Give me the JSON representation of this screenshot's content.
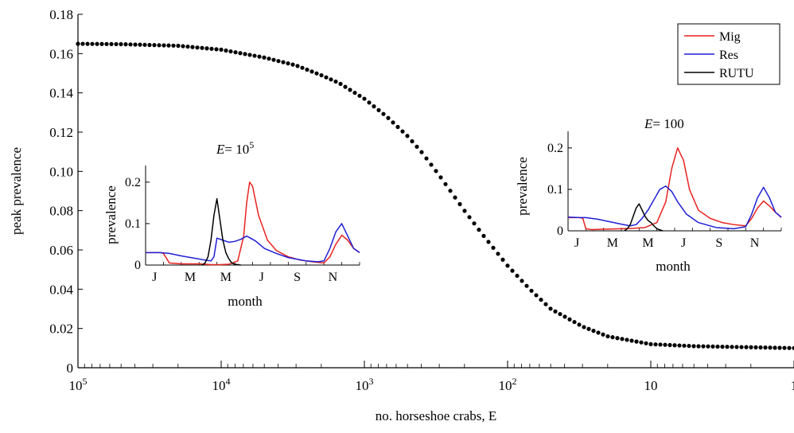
{
  "chart_data": {
    "type": "scatter",
    "xlabel": "no. horseshoe crabs, E",
    "ylabel": "peak prevalence",
    "x_scale": "log-reversed",
    "xlim": [
      100000,
      1
    ],
    "ylim": [
      0,
      0.18
    ],
    "x_ticks": [
      "10^5",
      "10^4",
      "10^3",
      "10^2",
      "10",
      "1"
    ],
    "y_ticks": [
      "0",
      "0.02",
      "0.04",
      "0.06",
      "0.08",
      "0.10",
      "0.12",
      "0.14",
      "0.16",
      "0.18"
    ],
    "main_series": {
      "E": [
        100000,
        50000,
        20000,
        10000,
        5000,
        3000,
        2000,
        1500,
        1000,
        700,
        500,
        400,
        300,
        200,
        150,
        100,
        70,
        50,
        30,
        20,
        10,
        5,
        1
      ],
      "peak_prevalence": [
        0.165,
        0.1648,
        0.164,
        0.162,
        0.158,
        0.154,
        0.149,
        0.145,
        0.137,
        0.128,
        0.118,
        0.11,
        0.098,
        0.08,
        0.068,
        0.052,
        0.04,
        0.03,
        0.021,
        0.016,
        0.012,
        0.011,
        0.01
      ]
    },
    "legend": {
      "position": "top-right",
      "entries": [
        {
          "name": "Mig",
          "color": "#e8231f"
        },
        {
          "name": "Res",
          "color": "#1f1fd6"
        },
        {
          "name": "RUTU",
          "color": "#000000"
        }
      ]
    },
    "insets": [
      {
        "title_prefix": "E",
        "title_value": "= 10^5",
        "xlabel": "month",
        "ylabel": "prevalence",
        "month_ticks": [
          "J",
          "M",
          "M",
          "J",
          "S",
          "N"
        ],
        "y_ticks": [
          "0",
          "0.1",
          "0.2"
        ],
        "ylim": [
          0,
          0.24
        ],
        "series": [
          {
            "name": "Mig",
            "color": "#e8231f",
            "t": [
              0,
              15,
              25,
              30,
              40,
              60,
              90,
              100,
              110,
              125,
              140,
              155,
              165,
              170,
              175,
              180,
              190,
              205,
              220,
              240,
              260,
              280,
              300,
              310,
              320,
              330,
              340,
              350,
              360
            ],
            "values": [
              0.03,
              0.03,
              0.03,
              0.028,
              0.005,
              0.003,
              0.003,
              0.002,
              0.001,
              0.001,
              0.002,
              0.01,
              0.07,
              0.15,
              0.2,
              0.19,
              0.12,
              0.06,
              0.035,
              0.02,
              0.012,
              0.008,
              0.005,
              0.02,
              0.05,
              0.072,
              0.06,
              0.04,
              0.03
            ]
          },
          {
            "name": "Res",
            "color": "#1f1fd6",
            "t": [
              0,
              25,
              40,
              60,
              80,
              100,
              110,
              115,
              120,
              130,
              140,
              150,
              160,
              170,
              185,
              200,
              220,
              240,
              270,
              290,
              300,
              310,
              320,
              330,
              340,
              350,
              360
            ],
            "values": [
              0.03,
              0.03,
              0.028,
              0.022,
              0.017,
              0.012,
              0.01,
              0.02,
              0.065,
              0.06,
              0.055,
              0.057,
              0.062,
              0.07,
              0.058,
              0.04,
              0.028,
              0.018,
              0.01,
              0.008,
              0.01,
              0.04,
              0.08,
              0.1,
              0.07,
              0.04,
              0.03
            ]
          },
          {
            "name": "RUTU",
            "color": "#000000",
            "t": [
              95,
              100,
              105,
              110,
              115,
              120,
              125,
              130,
              135,
              140,
              145,
              150,
              160
            ],
            "values": [
              0,
              0.005,
              0.02,
              0.06,
              0.12,
              0.16,
              0.11,
              0.06,
              0.03,
              0.015,
              0.005,
              0.002,
              0
            ]
          }
        ]
      },
      {
        "title_prefix": "E",
        "title_value": "= 100",
        "xlabel": "month",
        "ylabel": "prevalence",
        "month_ticks": [
          "J",
          "M",
          "M",
          "J",
          "S",
          "N"
        ],
        "y_ticks": [
          "0",
          "0.1",
          "0.2"
        ],
        "ylim": [
          0,
          0.24
        ],
        "series": [
          {
            "name": "Mig",
            "color": "#e8231f",
            "t": [
              0,
              10,
              20,
              25,
              30,
              40,
              60,
              90,
              110,
              130,
              150,
              165,
              175,
              185,
              195,
              205,
              220,
              240,
              260,
              280,
              300,
              310,
              320,
              330,
              340,
              350,
              360
            ],
            "values": [
              0.032,
              0.032,
              0.032,
              0.03,
              0.005,
              0.003,
              0.004,
              0.005,
              0.006,
              0.008,
              0.02,
              0.07,
              0.15,
              0.2,
              0.17,
              0.1,
              0.05,
              0.03,
              0.02,
              0.015,
              0.012,
              0.03,
              0.055,
              0.072,
              0.06,
              0.045,
              0.032
            ]
          },
          {
            "name": "Res",
            "color": "#1f1fd6",
            "t": [
              0,
              20,
              30,
              50,
              70,
              90,
              105,
              115,
              125,
              135,
              145,
              155,
              165,
              175,
              185,
              200,
              220,
              250,
              280,
              300,
              310,
              320,
              330,
              340,
              350,
              360
            ],
            "values": [
              0.033,
              0.032,
              0.032,
              0.028,
              0.022,
              0.016,
              0.012,
              0.015,
              0.03,
              0.05,
              0.075,
              0.1,
              0.108,
              0.095,
              0.07,
              0.04,
              0.02,
              0.008,
              0.005,
              0.01,
              0.04,
              0.08,
              0.105,
              0.08,
              0.045,
              0.033
            ]
          },
          {
            "name": "RUTU",
            "color": "#000000",
            "t": [
              95,
              100,
              105,
              110,
              115,
              120,
              125,
              130,
              135,
              140,
              145,
              150,
              160
            ],
            "values": [
              0,
              0.005,
              0.015,
              0.035,
              0.055,
              0.065,
              0.05,
              0.035,
              0.025,
              0.02,
              0.012,
              0.005,
              0
            ]
          }
        ]
      }
    ]
  }
}
